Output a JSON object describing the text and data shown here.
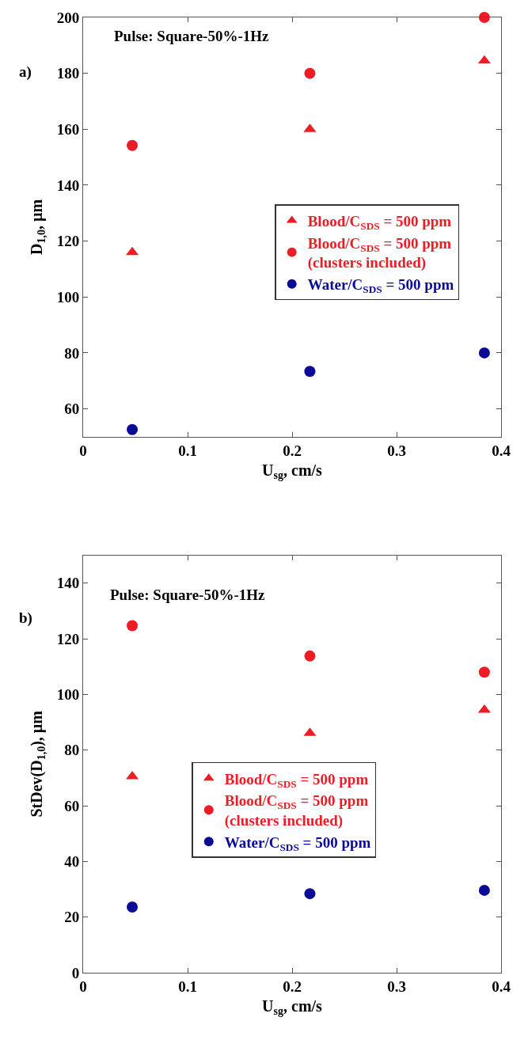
{
  "chart_data": [
    {
      "type": "scatter",
      "xlabel": "U$_{sg}$, cm/s",
      "ylabel": "D$_{1,0}$, µm",
      "xlim": [
        0,
        0.4
      ],
      "xticks": [
        0,
        0.1,
        0.2,
        0.3,
        0.4
      ],
      "ylim": [
        50,
        200
      ],
      "yticks": [
        60,
        80,
        100,
        120,
        140,
        160,
        180,
        200
      ],
      "legend": "right",
      "annotations": [
        "Pulse: Square-50%-1Hz",
        "a)"
      ],
      "series": [
        {
          "name": "Blood/C$_{SDS}$ = 500 ppm",
          "color": "#ee1c25",
          "marker": "triangle",
          "x": [
            0.047,
            0.217,
            0.384
          ],
          "values": [
            116,
            160,
            184.5
          ]
        },
        {
          "name": "Blood/C$_{SDS}$ = 500 ppm\n(clusters included)",
          "color": "#ee1c25",
          "marker": "circle",
          "x": [
            0.047,
            0.217,
            0.384
          ],
          "values": [
            154.2,
            180,
            200
          ]
        },
        {
          "name": "Water/C$_{SDS}$ = 500 ppm",
          "color": "#0a0a96",
          "marker": "circle",
          "x": [
            0.047,
            0.217,
            0.384
          ],
          "values": [
            52.6,
            73.4,
            80
          ]
        }
      ]
    },
    {
      "type": "scatter",
      "xlabel": "U$_{sg}$, cm/s",
      "ylabel": "StDev(D$_{1,0}$), µm",
      "xlim": [
        0,
        0.4
      ],
      "xticks": [
        0,
        0.1,
        0.2,
        0.3,
        0.4
      ],
      "ylim": [
        0,
        150
      ],
      "yticks": [
        0,
        20,
        40,
        60,
        80,
        100,
        120,
        140
      ],
      "legend": "center",
      "annotations": [
        "Pulse: Square-50%-1Hz",
        "b)"
      ],
      "series": [
        {
          "name": "Blood/C$_{SDS}$ = 500 ppm",
          "color": "#ee1c25",
          "marker": "triangle",
          "x": [
            0.047,
            0.217,
            0.384
          ],
          "values": [
            70.5,
            86.1,
            94.4
          ]
        },
        {
          "name": "Blood/C$_{SDS}$ = 500 ppm\n(clusters included)",
          "color": "#ee1c25",
          "marker": "circle",
          "x": [
            0.047,
            0.217,
            0.384
          ],
          "values": [
            124.7,
            113.8,
            108
          ]
        },
        {
          "name": "Water/C$_{SDS}$ = 500 ppm",
          "color": "#0a0a96",
          "marker": "circle",
          "x": [
            0.047,
            0.217,
            0.384
          ],
          "values": [
            23.6,
            28.4,
            29.6
          ]
        }
      ]
    }
  ]
}
